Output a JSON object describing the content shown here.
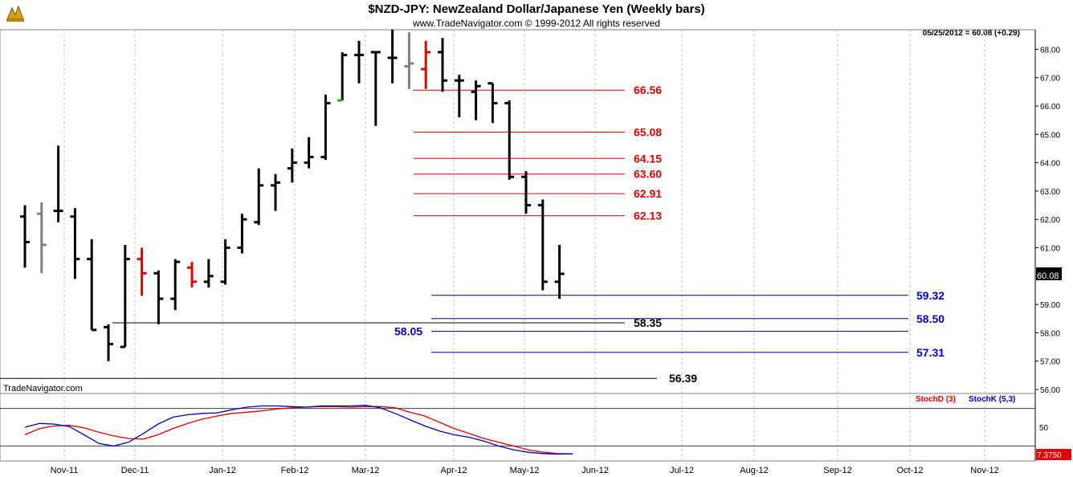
{
  "header": {
    "title": "$NZD-JPY:  NewZealand Dollar/Japanese Yen  (Weekly bars)",
    "copyright": "www.TradeNavigator.com © 1999-2012 All rights reserved",
    "last_quote": "05/25/2012 = 60.08 (+0.29)"
  },
  "watermark": "TradeNavigator.com",
  "colors": {
    "up_bar": "#000000",
    "neutral_bar": "#808080",
    "red_bar": "#e00000",
    "green_tick": "#00c000",
    "retracement_lines": "#e00000",
    "target_lines": "#000080",
    "support_lines": "#000000",
    "stoch_d": "#e00000",
    "stoch_k": "#0000c0",
    "current_price_box": "#000000",
    "stoch_value_box": "#e00000"
  },
  "chart_data": [
    {
      "type": "ohlc",
      "title": "$NZD-JPY:  NewZealand Dollar/Japanese Yen  (Weekly bars)",
      "ylim": [
        56.0,
        68.5
      ],
      "y_ticks": [
        "56.00",
        "57.00",
        "58.00",
        "59.00",
        "60.00",
        "61.00",
        "62.00",
        "63.00",
        "64.00",
        "65.00",
        "66.00",
        "67.00",
        "68.00"
      ],
      "x_labels": [
        "Nov-11",
        "Dec-11",
        "Jan-12",
        "Feb-12",
        "Mar-12",
        "Apr-12",
        "May-12",
        "Jun-12",
        "Jul-12",
        "Aug-12",
        "Sep-12",
        "Oct-12",
        "Nov-12"
      ],
      "current_price": "60.08",
      "bars": [
        {
          "o": 62.1,
          "h": 62.5,
          "l": 60.3,
          "c": 61.2,
          "color": "black"
        },
        {
          "o": 62.2,
          "h": 62.6,
          "l": 60.1,
          "c": 61.1,
          "color": "gray"
        },
        {
          "o": 62.3,
          "h": 64.6,
          "l": 61.9,
          "c": 62.3,
          "color": "black"
        },
        {
          "o": 62.1,
          "h": 62.4,
          "l": 59.9,
          "c": 60.6,
          "color": "black"
        },
        {
          "o": 60.6,
          "h": 61.3,
          "l": 58.1,
          "c": 58.1,
          "color": "black"
        },
        {
          "o": 58.2,
          "h": 58.3,
          "l": 57.0,
          "c": 57.6,
          "color": "black"
        },
        {
          "o": 57.5,
          "h": 61.1,
          "l": 57.5,
          "c": 60.6,
          "color": "black"
        },
        {
          "o": 60.6,
          "h": 61.0,
          "l": 59.3,
          "c": 60.1,
          "color": "red"
        },
        {
          "o": 60.1,
          "h": 60.2,
          "l": 58.3,
          "c": 59.2,
          "color": "black"
        },
        {
          "o": 59.2,
          "h": 60.6,
          "l": 58.8,
          "c": 60.5,
          "color": "black"
        },
        {
          "o": 60.3,
          "h": 60.5,
          "l": 59.6,
          "c": 59.8,
          "color": "red"
        },
        {
          "o": 59.8,
          "h": 60.6,
          "l": 59.6,
          "c": 60.0,
          "color": "black"
        },
        {
          "o": 59.8,
          "h": 61.3,
          "l": 59.7,
          "c": 61.0,
          "color": "black"
        },
        {
          "o": 61.0,
          "h": 62.2,
          "l": 60.8,
          "c": 62.0,
          "color": "black"
        },
        {
          "o": 61.9,
          "h": 63.8,
          "l": 61.8,
          "c": 63.2,
          "color": "black"
        },
        {
          "o": 63.2,
          "h": 63.6,
          "l": 62.3,
          "c": 63.3,
          "color": "black"
        },
        {
          "o": 63.8,
          "h": 64.5,
          "l": 63.3,
          "c": 64.0,
          "color": "black"
        },
        {
          "o": 64.0,
          "h": 64.9,
          "l": 63.8,
          "c": 64.2,
          "color": "black"
        },
        {
          "o": 64.2,
          "h": 66.4,
          "l": 64.1,
          "c": 66.1,
          "color": "black"
        },
        {
          "o": 66.2,
          "h": 67.9,
          "l": 66.2,
          "c": 67.8,
          "color": "black",
          "open_tick": "green"
        },
        {
          "o": 67.8,
          "h": 68.3,
          "l": 66.8,
          "c": 67.8,
          "color": "black"
        },
        {
          "o": 67.9,
          "h": 67.9,
          "l": 65.3,
          "c": 67.9,
          "color": "black"
        },
        {
          "o": 67.7,
          "h": 68.7,
          "l": 66.8,
          "c": 67.7,
          "color": "black"
        },
        {
          "o": 67.4,
          "h": 68.6,
          "l": 66.6,
          "c": 67.5,
          "color": "gray"
        },
        {
          "o": 67.3,
          "h": 68.3,
          "l": 66.6,
          "c": 67.9,
          "color": "red"
        },
        {
          "o": 67.9,
          "h": 68.4,
          "l": 66.5,
          "c": 66.9,
          "color": "black"
        },
        {
          "o": 66.9,
          "h": 67.1,
          "l": 65.6,
          "c": 66.9,
          "color": "black"
        },
        {
          "o": 66.5,
          "h": 66.9,
          "l": 65.5,
          "c": 66.7,
          "color": "black"
        },
        {
          "o": 66.8,
          "h": 66.8,
          "l": 65.4,
          "c": 66.1,
          "color": "black"
        },
        {
          "o": 66.1,
          "h": 66.2,
          "l": 63.4,
          "c": 63.5,
          "color": "black"
        },
        {
          "o": 63.5,
          "h": 63.7,
          "l": 62.2,
          "c": 62.5,
          "color": "black"
        },
        {
          "o": 62.5,
          "h": 62.7,
          "l": 59.5,
          "c": 59.8,
          "color": "black"
        },
        {
          "o": 59.8,
          "h": 61.1,
          "l": 59.2,
          "c": 60.08,
          "color": "black"
        }
      ],
      "retracement_levels": [
        {
          "value": 66.56,
          "label": "66.56"
        },
        {
          "value": 65.08,
          "label": "65.08"
        },
        {
          "value": 64.15,
          "label": "64.15"
        },
        {
          "value": 63.6,
          "label": "63.60"
        },
        {
          "value": 62.91,
          "label": "62.91"
        },
        {
          "value": 62.13,
          "label": "62.13"
        }
      ],
      "target_levels": [
        {
          "value": 59.32,
          "label": "59.32"
        },
        {
          "value": 58.5,
          "label": "58.50"
        },
        {
          "value": 58.05,
          "label": "58.05"
        },
        {
          "value": 57.31,
          "label": "57.31"
        }
      ],
      "support_levels": [
        {
          "value": 58.35,
          "label": "58.35"
        },
        {
          "value": 56.39,
          "label": "56.39"
        }
      ]
    },
    {
      "type": "line",
      "title": "",
      "ylim": [
        0,
        100
      ],
      "y_ticks": [
        "50"
      ],
      "current_value": "7.3750",
      "series": [
        {
          "name": "StochD (3)",
          "color": "#e00000",
          "values": [
            38,
            48,
            52,
            53,
            49,
            42,
            36,
            32,
            31,
            38,
            48,
            56,
            63,
            68,
            72,
            74,
            76,
            79,
            81,
            82,
            83,
            83,
            82,
            83,
            83,
            81,
            74,
            68,
            58,
            48,
            40,
            32,
            26,
            20,
            14,
            10,
            8,
            7.4
          ]
        },
        {
          "name": "StochK (5,3)",
          "color": "#0000c0",
          "values": [
            50,
            56,
            55,
            51,
            38,
            24,
            20,
            26,
            40,
            55,
            66,
            70,
            72,
            73,
            78,
            82,
            84,
            84,
            83,
            82,
            84,
            84,
            84,
            85,
            81,
            72,
            62,
            52,
            44,
            38,
            34,
            28,
            20,
            14,
            10,
            8,
            7,
            7.4
          ]
        }
      ]
    }
  ]
}
